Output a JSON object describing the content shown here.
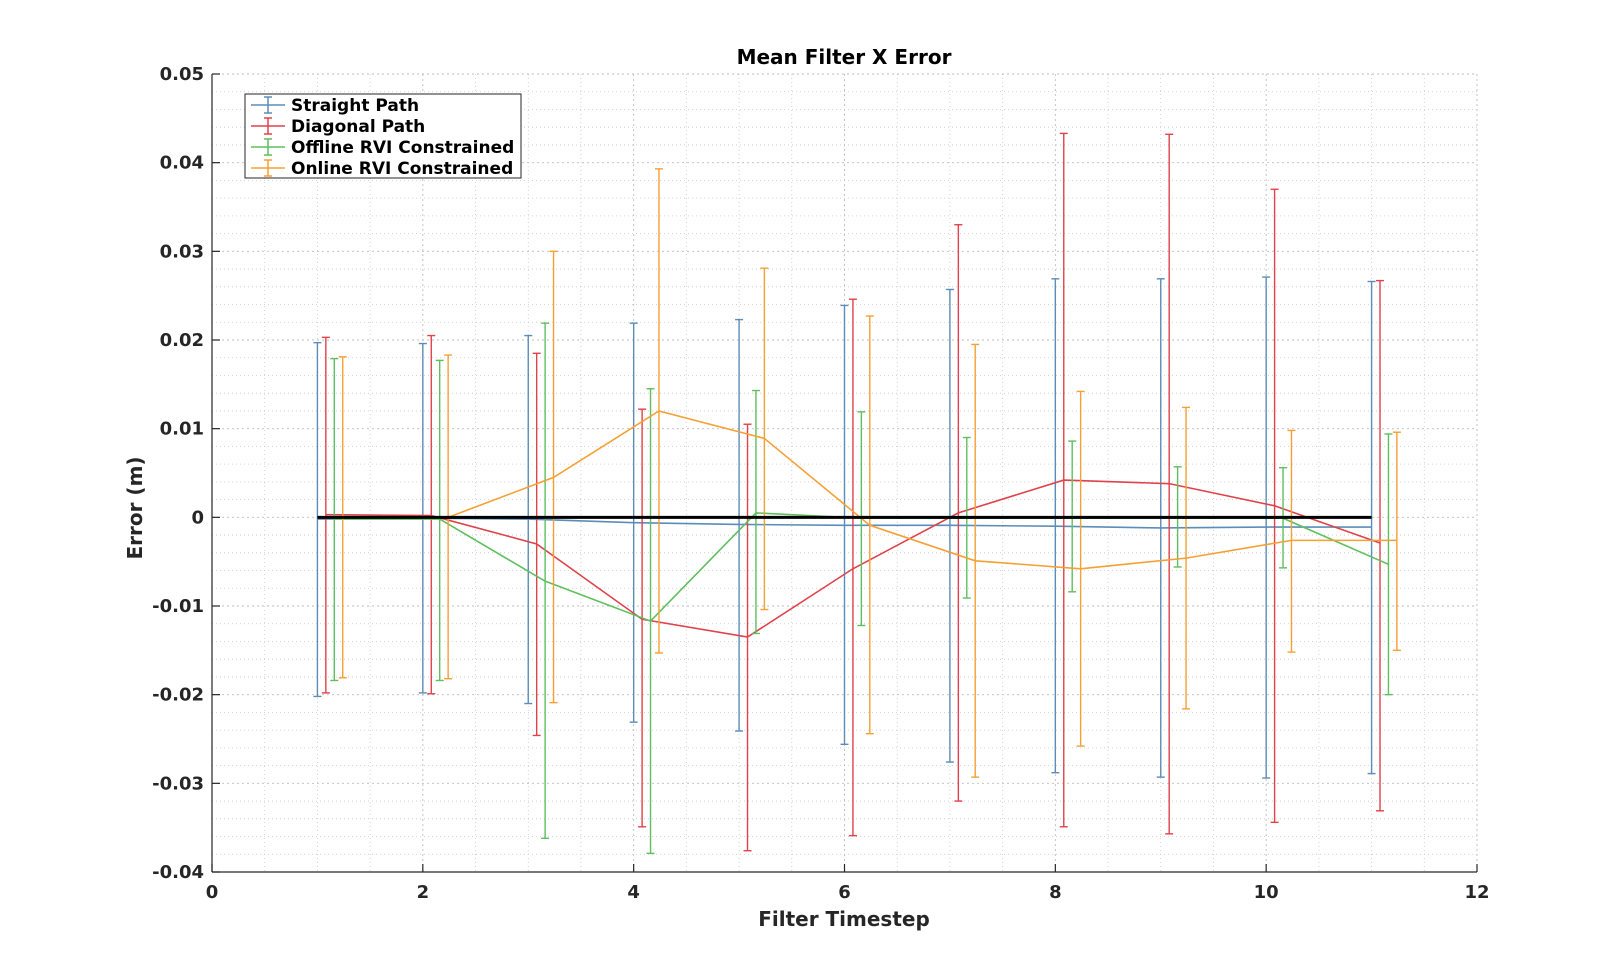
{
  "chart_data": {
    "type": "line",
    "title": "Mean Filter X Error",
    "xlabel": "Filter Timestep",
    "ylabel": "Error (m)",
    "xlim": [
      0,
      12
    ],
    "ylim": [
      -0.04,
      0.05
    ],
    "xticks": [
      0,
      2,
      4,
      6,
      8,
      10,
      12
    ],
    "yticks": [
      -0.04,
      -0.03,
      -0.02,
      -0.01,
      0,
      0.01,
      0.02,
      0.03,
      0.04,
      0.05
    ],
    "xtick_labels": [
      "0",
      "2",
      "4",
      "6",
      "8",
      "10",
      "12"
    ],
    "ytick_labels": [
      "-0.04",
      "-0.03",
      "-0.02",
      "-0.01",
      "0",
      "0.01",
      "0.02",
      "0.03",
      "0.04",
      "0.05"
    ],
    "grid": true,
    "minor_grid": true,
    "legend_position": "top-left",
    "colors": {
      "straight": "#5b8db8",
      "diagonal": "#e0424b",
      "offline": "#5fbf5f",
      "online": "#f5a033",
      "reference": "#000000"
    },
    "reference_line": {
      "y": 0,
      "x": [
        1,
        11
      ]
    },
    "series": [
      {
        "name": "Straight Path",
        "color_key": "straight",
        "x": [
          1,
          2,
          3,
          4,
          5,
          6,
          7,
          8,
          9,
          10,
          11
        ],
        "y": [
          -0.0002,
          -0.0001,
          -0.0002,
          -0.0006,
          -0.0008,
          -0.0009,
          -0.0009,
          -0.001,
          -0.0012,
          -0.0011,
          -0.0011
        ],
        "err_low": [
          -0.0202,
          -0.0198,
          -0.021,
          -0.0231,
          -0.0241,
          -0.0256,
          -0.0276,
          -0.0288,
          -0.0293,
          -0.0294,
          -0.0289
        ],
        "err_high": [
          0.0197,
          0.0196,
          0.0205,
          0.0219,
          0.0223,
          0.0239,
          0.0257,
          0.0269,
          0.0269,
          0.0271,
          0.0266
        ]
      },
      {
        "name": "Diagonal Path",
        "color_key": "diagonal",
        "x": [
          1.08,
          2.08,
          3.08,
          4.08,
          5.08,
          6.08,
          7.08,
          8.08,
          9.08,
          10.08,
          11.08
        ],
        "y": [
          0.0003,
          0.0002,
          -0.003,
          -0.0115,
          -0.0135,
          -0.0058,
          0.0005,
          0.0042,
          0.0038,
          0.0013,
          -0.0029
        ],
        "err_low": [
          -0.0198,
          -0.0199,
          -0.0246,
          -0.0349,
          -0.0376,
          -0.0359,
          -0.032,
          -0.0349,
          -0.0357,
          -0.0344,
          -0.0331
        ],
        "err_high": [
          0.0203,
          0.0205,
          0.0185,
          0.0122,
          0.0105,
          0.0246,
          0.033,
          0.0433,
          0.0432,
          0.037,
          0.0267
        ]
      },
      {
        "name": "Offline RVI Constrained",
        "color_key": "offline",
        "x": [
          1.16,
          2.16,
          3.16,
          4.16,
          5.16,
          6.16,
          7.16,
          8.16,
          9.16,
          10.16,
          11.16
        ],
        "y": [
          -0.0002,
          -0.0002,
          -0.0072,
          -0.0117,
          0.0005,
          -0.0001,
          -0.0001,
          -0.0001,
          -0.0001,
          -0.0001,
          -0.0053
        ],
        "err_low": [
          -0.0184,
          -0.0184,
          -0.0362,
          -0.0379,
          -0.0131,
          -0.0122,
          -0.0091,
          -0.0084,
          -0.0056,
          -0.0057,
          -0.02
        ],
        "err_high": [
          0.0179,
          0.0177,
          0.0219,
          0.0145,
          0.0143,
          0.0119,
          0.009,
          0.0086,
          0.0057,
          0.0056,
          0.0094
        ]
      },
      {
        "name": "Online RVI Constrained",
        "color_key": "online",
        "x": [
          1.24,
          2.24,
          3.24,
          4.24,
          5.24,
          6.24,
          7.24,
          8.24,
          9.24,
          10.24,
          11.24
        ],
        "y": [
          0.0,
          0.0,
          0.0045,
          0.012,
          0.0089,
          -0.0009,
          -0.0049,
          -0.0058,
          -0.0046,
          -0.0026,
          -0.0026
        ],
        "err_low": [
          -0.0181,
          -0.0182,
          -0.0209,
          -0.0153,
          -0.0104,
          -0.0244,
          -0.0293,
          -0.0258,
          -0.0216,
          -0.0152,
          -0.015
        ],
        "err_high": [
          0.0181,
          0.0183,
          0.03,
          0.0393,
          0.0281,
          0.0227,
          0.0195,
          0.0142,
          0.0124,
          0.0098,
          0.0096
        ]
      }
    ]
  }
}
